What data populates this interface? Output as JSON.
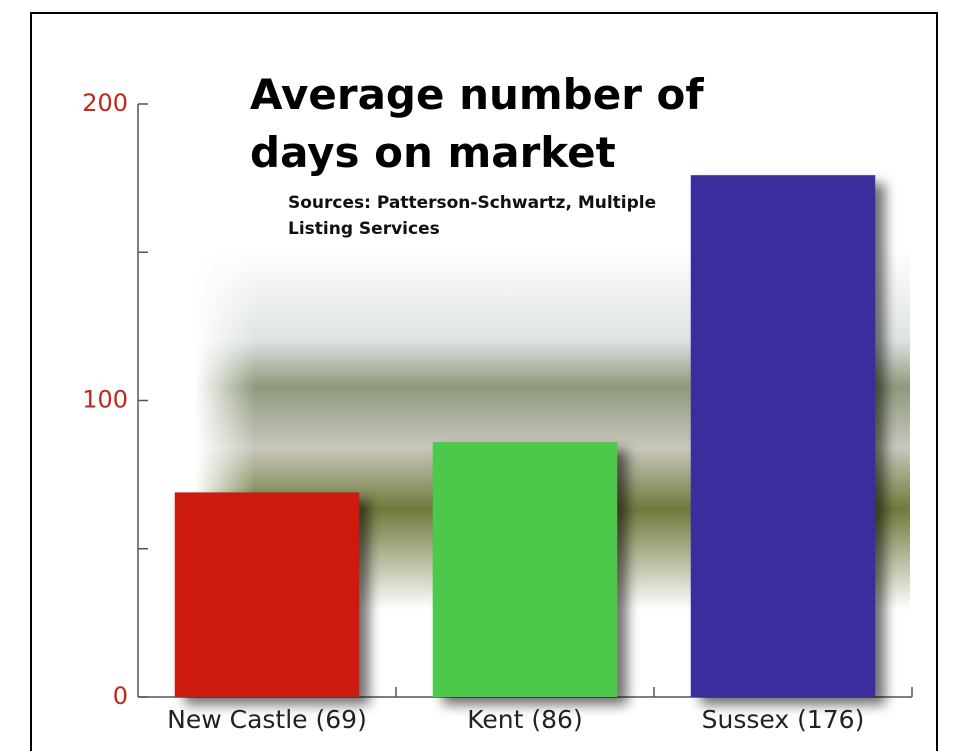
{
  "chart_data": {
    "type": "bar",
    "title": "Average number of days on market",
    "subtitle": "Sources: Patterson-Schwartz, Multiple Listing Services",
    "categories": [
      "New Castle (69)",
      "Kent (86)",
      "Sussex (176)"
    ],
    "values": [
      69,
      86,
      176
    ],
    "colors": [
      "#cc1a0f",
      "#4cc94a",
      "#3a2e9e"
    ],
    "ylim": [
      0,
      200
    ],
    "yticks": [
      0,
      100,
      200
    ],
    "yminorticks": [
      50,
      150
    ]
  }
}
